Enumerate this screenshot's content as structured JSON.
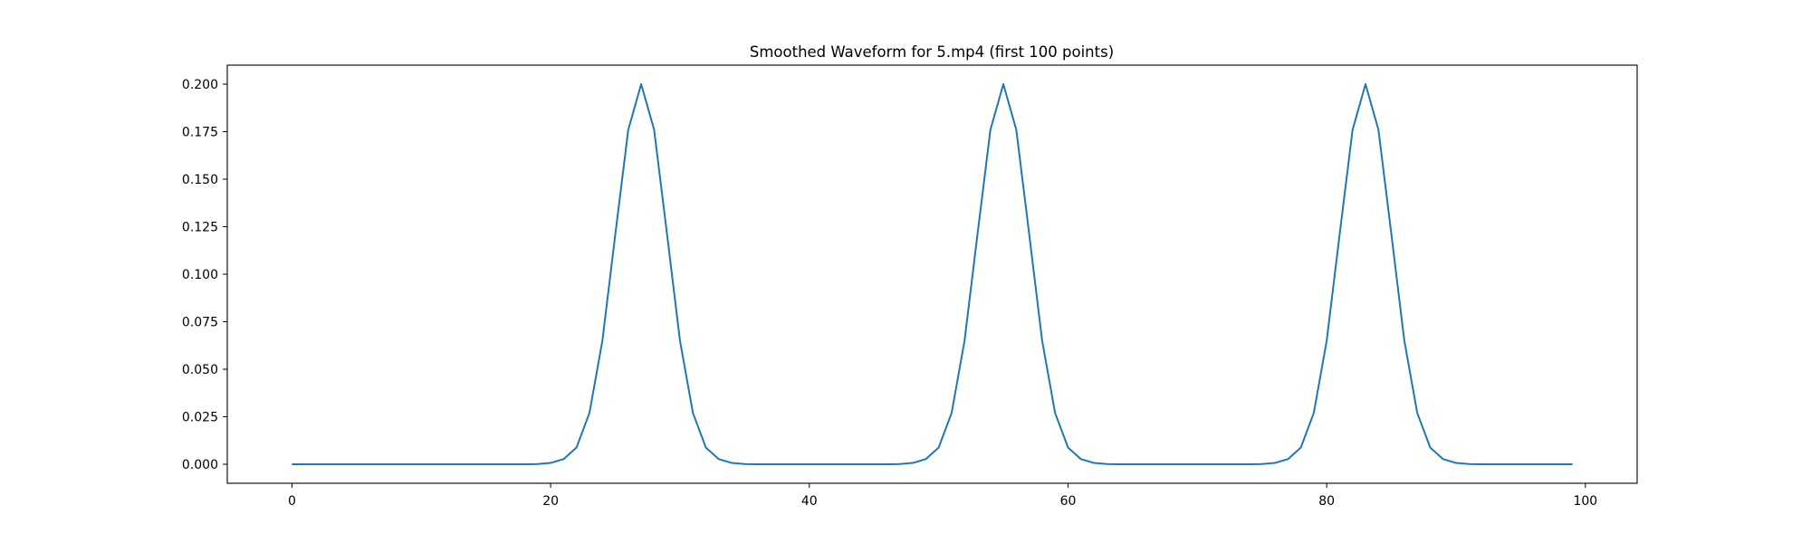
{
  "chart_data": {
    "type": "line",
    "title": "Smoothed Waveform for 5.mp4 (first 100 points)",
    "xlabel": "",
    "ylabel": "",
    "xlim": [
      -5,
      104
    ],
    "ylim": [
      -0.01,
      0.21
    ],
    "x_ticks": [
      0,
      20,
      40,
      60,
      80,
      100
    ],
    "x_tick_labels": [
      "0",
      "20",
      "40",
      "60",
      "80",
      "100"
    ],
    "y_ticks": [
      0.0,
      0.025,
      0.05,
      0.075,
      0.1,
      0.125,
      0.15,
      0.175,
      0.2
    ],
    "y_tick_labels": [
      "0.000",
      "0.025",
      "0.050",
      "0.075",
      "0.100",
      "0.125",
      "0.150",
      "0.175",
      "0.200"
    ],
    "grid": false,
    "legend": "none",
    "line_color": "#1f77b4",
    "series": [
      {
        "x": [
          0,
          1,
          2,
          3,
          4,
          5,
          6,
          7,
          8,
          9,
          10,
          11,
          12,
          13,
          14,
          15,
          16,
          17,
          18,
          19,
          20,
          21,
          22,
          23,
          24,
          25,
          26,
          27,
          28,
          29,
          30,
          31,
          32,
          33,
          34,
          35,
          36,
          37,
          38,
          39,
          40,
          41,
          42,
          43,
          44,
          45,
          46,
          47,
          48,
          49,
          50,
          51,
          52,
          53,
          54,
          55,
          56,
          57,
          58,
          59,
          60,
          61,
          62,
          63,
          64,
          65,
          66,
          67,
          68,
          69,
          70,
          71,
          72,
          73,
          74,
          75,
          76,
          77,
          78,
          79,
          80,
          81,
          82,
          83,
          84,
          85,
          86,
          87,
          88,
          89,
          90,
          91,
          92,
          93,
          94,
          95,
          96,
          97,
          98,
          99
        ],
        "values": [
          0,
          0,
          0,
          0,
          0,
          0,
          0,
          0,
          0,
          0,
          0,
          0,
          0,
          0,
          0,
          0,
          0,
          0,
          0,
          0.0001,
          0.0007,
          0.0027,
          0.0088,
          0.027,
          0.065,
          0.121,
          0.176,
          0.2,
          0.176,
          0.121,
          0.065,
          0.027,
          0.0088,
          0.0027,
          0.0007,
          0.0001,
          0,
          0,
          0,
          0,
          0,
          0,
          0,
          0,
          0,
          0,
          0,
          0.0001,
          0.0007,
          0.0027,
          0.0088,
          0.027,
          0.065,
          0.121,
          0.176,
          0.2,
          0.176,
          0.121,
          0.065,
          0.027,
          0.0088,
          0.0027,
          0.0007,
          0.0001,
          0,
          0,
          0,
          0,
          0,
          0,
          0,
          0,
          0,
          0,
          0,
          0.0001,
          0.0007,
          0.0027,
          0.0088,
          0.027,
          0.065,
          0.121,
          0.176,
          0.2,
          0.176,
          0.121,
          0.065,
          0.027,
          0.0088,
          0.0027,
          0.0007,
          0.0001,
          0,
          0,
          0,
          0,
          0,
          0,
          0,
          0
        ]
      }
    ]
  }
}
